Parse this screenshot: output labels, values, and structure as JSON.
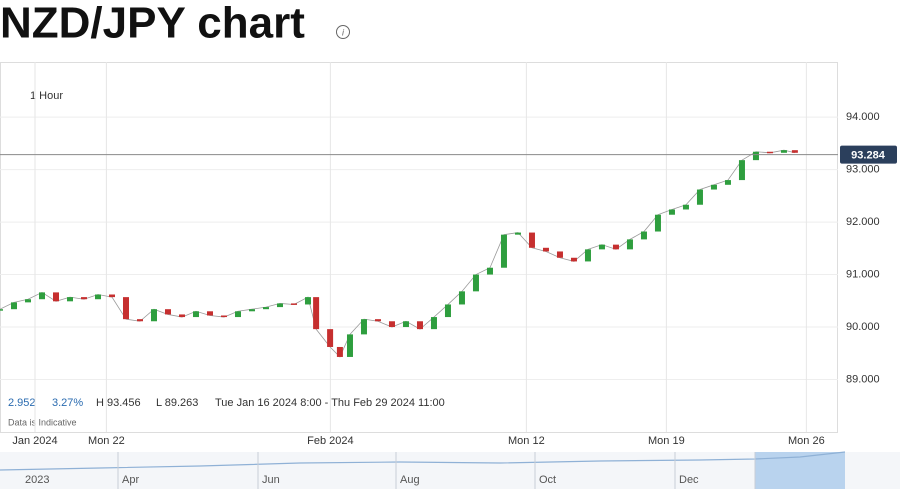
{
  "header": {
    "title": "NZD/JPY chart"
  },
  "chart_data": {
    "type": "candlestick",
    "interval": "1 Hour",
    "stats": {
      "change": "2.952",
      "change_pct": "3.27%",
      "high": "H 93.456",
      "low": "L 89.263",
      "range": "Tue Jan 16 2024 8:00 - Thu Feb 29 2024 11:00",
      "note": "Data is Indicative"
    },
    "x": [
      0,
      0.5,
      1,
      1.5,
      2,
      2.5,
      3,
      3.5,
      4,
      4.5,
      5,
      5.5,
      6,
      6.5,
      7,
      7.5,
      8,
      8.5,
      9,
      9.5,
      10,
      10.5,
      11,
      11.29,
      11.79,
      12.14,
      12.5,
      13,
      13.5,
      14,
      14.5,
      15,
      15.5,
      16,
      16.5,
      17,
      17.5,
      18,
      18.5,
      19,
      19.5,
      20,
      20.5,
      21,
      21.5,
      22,
      22.5,
      23,
      23.5,
      24,
      24.5,
      25,
      25.5,
      26,
      26.5,
      27,
      27.5,
      28,
      28.39
    ],
    "values": [
      90.34,
      90.47,
      90.53,
      90.66,
      90.49,
      90.57,
      90.53,
      90.62,
      90.57,
      90.15,
      90.11,
      90.34,
      90.24,
      90.19,
      90.3,
      90.22,
      90.19,
      90.3,
      90.34,
      90.38,
      90.45,
      90.43,
      90.57,
      89.96,
      89.62,
      89.43,
      89.86,
      90.15,
      90.11,
      90.0,
      90.11,
      89.96,
      90.19,
      90.43,
      90.68,
      91.0,
      91.13,
      91.76,
      91.8,
      91.51,
      91.44,
      91.32,
      91.25,
      91.48,
      91.57,
      91.48,
      91.67,
      91.82,
      92.14,
      92.24,
      92.33,
      92.62,
      92.71,
      92.8,
      93.18,
      93.34,
      93.32,
      93.37,
      93.32
    ],
    "up_color": "#2e9e3e",
    "down_color": "#c62f2f",
    "current_price": {
      "value": 93.284,
      "label": "93.284"
    },
    "xlim": [
      0,
      29.93
    ],
    "ylim": [
      88,
      95.05
    ],
    "xticks": [
      {
        "value": 1.25,
        "label": "Jan 2024"
      },
      {
        "value": 3.8,
        "label": "Mon 22"
      },
      {
        "value": 11.8,
        "label": "Feb 2024"
      },
      {
        "value": 18.8,
        "label": "Mon 12"
      },
      {
        "value": 23.8,
        "label": "Mon 19"
      },
      {
        "value": 28.8,
        "label": "Mon 26"
      }
    ],
    "yticks": [
      {
        "value": 89,
        "label": "89.000"
      },
      {
        "value": 90,
        "label": "90.000"
      },
      {
        "value": 91,
        "label": "91.000"
      },
      {
        "value": 92,
        "label": "92.000"
      },
      {
        "value": 93,
        "label": "93.000"
      },
      {
        "value": 94,
        "label": "94.000"
      }
    ],
    "grid": true
  },
  "navigator": {
    "labels": [
      "2023",
      "Apr",
      "Jun",
      "Aug",
      "Oct",
      "Dec"
    ]
  }
}
